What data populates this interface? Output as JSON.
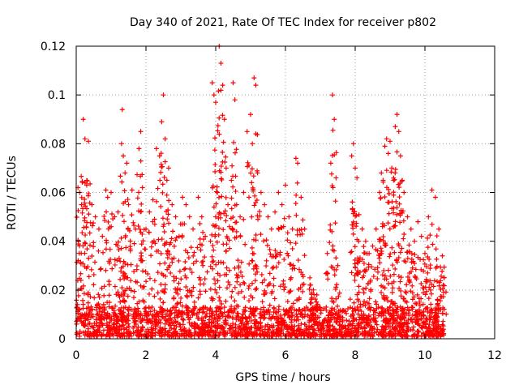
{
  "chart_data": {
    "type": "scatter",
    "title": "Day 340 of 2021, Rate Of TEC Index for receiver p802",
    "xlabel": "GPS time / hours",
    "ylabel": "ROTI / TECUs",
    "xlim": [
      0,
      12
    ],
    "ylim": [
      0,
      0.12
    ],
    "x_ticks": [
      "0",
      "2",
      "4",
      "6",
      "8",
      "10",
      "12"
    ],
    "y_ticks": [
      "0",
      "0.02",
      "0.04",
      "0.06",
      "0.08",
      "0.1",
      "0.12"
    ],
    "grid": true,
    "marker": "+",
    "series": [
      {
        "color": "#ff0000",
        "data_extent_hours": [
          0,
          10.55
        ],
        "points": [
          [
            0.05,
            0.062
          ],
          [
            0.1,
            0.06
          ],
          [
            0.15,
            0.055
          ],
          [
            0.2,
            0.09
          ],
          [
            0.25,
            0.082
          ],
          [
            0.3,
            0.063
          ],
          [
            0.35,
            0.081
          ],
          [
            0.45,
            0.055
          ],
          [
            0.55,
            0.05
          ],
          [
            0.65,
            0.045
          ],
          [
            0.75,
            0.042
          ],
          [
            0.85,
            0.061
          ],
          [
            0.9,
            0.058
          ],
          [
            1.0,
            0.06
          ],
          [
            1.1,
            0.05
          ],
          [
            1.2,
            0.052
          ],
          [
            1.3,
            0.08
          ],
          [
            1.32,
            0.094
          ],
          [
            1.35,
            0.075
          ],
          [
            1.4,
            0.068
          ],
          [
            1.45,
            0.072
          ],
          [
            1.5,
            0.055
          ],
          [
            1.6,
            0.061
          ],
          [
            1.7,
            0.045
          ],
          [
            1.8,
            0.078
          ],
          [
            1.85,
            0.085
          ],
          [
            1.9,
            0.062
          ],
          [
            2.0,
            0.045
          ],
          [
            2.1,
            0.052
          ],
          [
            2.2,
            0.057
          ],
          [
            2.3,
            0.078
          ],
          [
            2.4,
            0.065
          ],
          [
            2.45,
            0.089
          ],
          [
            2.5,
            0.1
          ],
          [
            2.55,
            0.082
          ],
          [
            2.6,
            0.065
          ],
          [
            2.65,
            0.07
          ],
          [
            2.75,
            0.055
          ],
          [
            2.85,
            0.05
          ],
          [
            2.95,
            0.042
          ],
          [
            3.05,
            0.058
          ],
          [
            3.15,
            0.055
          ],
          [
            3.25,
            0.05
          ],
          [
            3.35,
            0.045
          ],
          [
            3.5,
            0.058
          ],
          [
            3.6,
            0.05
          ],
          [
            3.7,
            0.042
          ],
          [
            3.85,
            0.04
          ],
          [
            3.9,
            0.105
          ],
          [
            3.95,
            0.1
          ],
          [
            4.0,
            0.097
          ],
          [
            4.05,
            0.06
          ],
          [
            4.1,
            0.12
          ],
          [
            4.15,
            0.113
          ],
          [
            4.2,
            0.104
          ],
          [
            4.25,
            0.09
          ],
          [
            4.3,
            0.07
          ],
          [
            4.35,
            0.055
          ],
          [
            4.45,
            0.065
          ],
          [
            4.5,
            0.105
          ],
          [
            4.55,
            0.098
          ],
          [
            4.6,
            0.055
          ],
          [
            4.7,
            0.05
          ],
          [
            4.8,
            0.06
          ],
          [
            4.9,
            0.085
          ],
          [
            5.0,
            0.092
          ],
          [
            5.05,
            0.08
          ],
          [
            5.1,
            0.107
          ],
          [
            5.15,
            0.104
          ],
          [
            5.2,
            0.068
          ],
          [
            5.3,
            0.06
          ],
          [
            5.4,
            0.055
          ],
          [
            5.5,
            0.05
          ],
          [
            5.6,
            0.045
          ],
          [
            5.7,
            0.052
          ],
          [
            5.8,
            0.06
          ],
          [
            5.9,
            0.055
          ],
          [
            6.0,
            0.063
          ],
          [
            6.1,
            0.05
          ],
          [
            6.2,
            0.045
          ],
          [
            6.3,
            0.074
          ],
          [
            6.35,
            0.072
          ],
          [
            6.45,
            0.058
          ],
          [
            6.55,
            0.045
          ],
          [
            6.7,
            0.025
          ],
          [
            6.8,
            0.02
          ],
          [
            6.9,
            0.018
          ],
          [
            7.2,
            0.035
          ],
          [
            7.3,
            0.072
          ],
          [
            7.35,
            0.1
          ],
          [
            7.4,
            0.09
          ],
          [
            7.45,
            0.066
          ],
          [
            7.5,
            0.03
          ],
          [
            7.9,
            0.075
          ],
          [
            7.95,
            0.08
          ],
          [
            8.0,
            0.07
          ],
          [
            8.05,
            0.066
          ],
          [
            8.1,
            0.04
          ],
          [
            8.2,
            0.045
          ],
          [
            8.3,
            0.04
          ],
          [
            8.4,
            0.035
          ],
          [
            8.5,
            0.038
          ],
          [
            8.6,
            0.045
          ],
          [
            8.7,
            0.06
          ],
          [
            8.75,
            0.068
          ],
          [
            8.8,
            0.065
          ],
          [
            8.85,
            0.079
          ],
          [
            8.9,
            0.082
          ],
          [
            8.95,
            0.076
          ],
          [
            9.0,
            0.081
          ],
          [
            9.05,
            0.07
          ],
          [
            9.1,
            0.065
          ],
          [
            9.15,
            0.087
          ],
          [
            9.2,
            0.092
          ],
          [
            9.25,
            0.085
          ],
          [
            9.3,
            0.075
          ],
          [
            9.35,
            0.065
          ],
          [
            9.4,
            0.06
          ],
          [
            9.5,
            0.05
          ],
          [
            9.6,
            0.045
          ],
          [
            9.7,
            0.04
          ],
          [
            9.8,
            0.048
          ],
          [
            9.9,
            0.042
          ],
          [
            10.0,
            0.035
          ],
          [
            10.1,
            0.05
          ],
          [
            10.2,
            0.061
          ],
          [
            10.3,
            0.058
          ],
          [
            10.4,
            0.045
          ],
          [
            10.5,
            0.034
          ],
          [
            10.55,
            0.025
          ]
        ],
        "low_band_density_per_hour": 160,
        "low_band_max": 0.012
      }
    ]
  }
}
